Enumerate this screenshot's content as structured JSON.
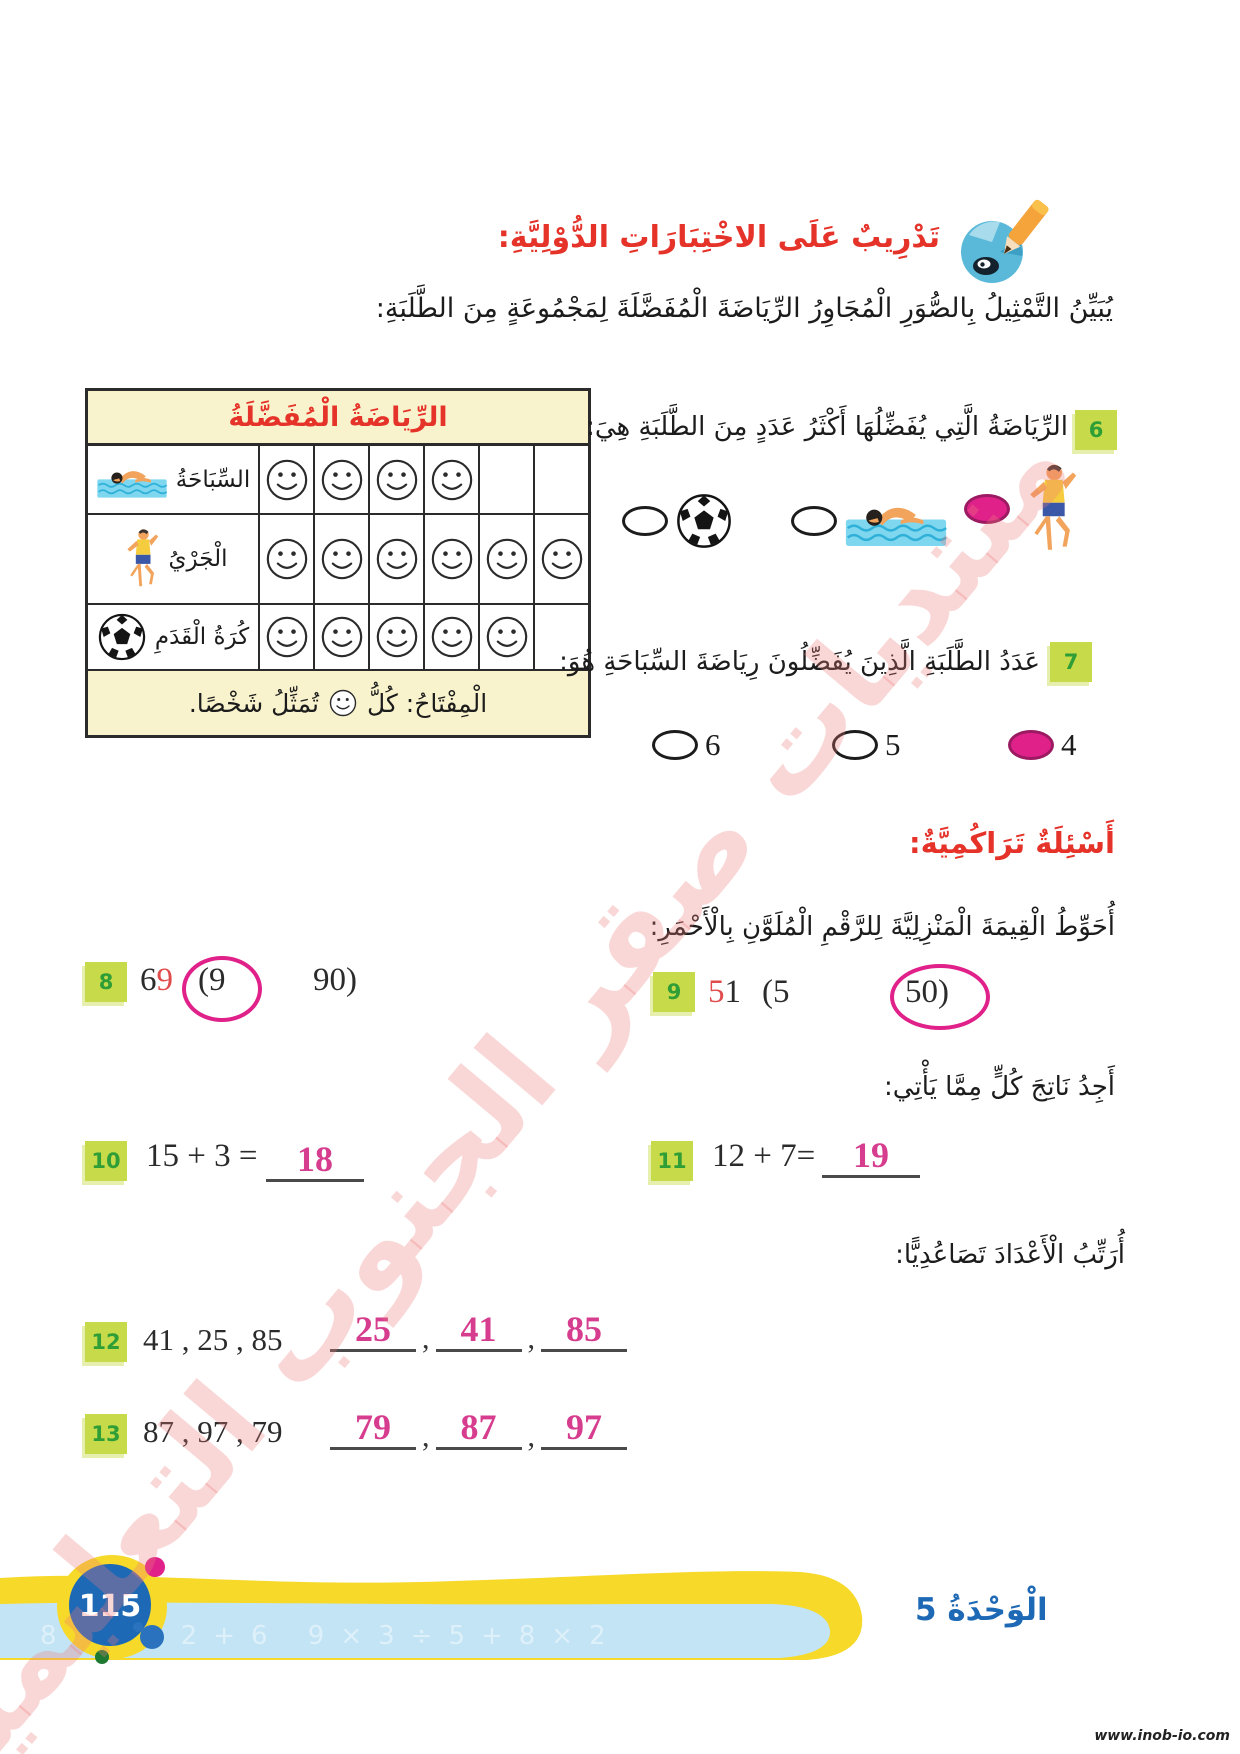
{
  "page": {
    "number": "115",
    "unit_label": "الْوَحْدَةُ 5",
    "url": "www.inob-io.com",
    "watermark": "منتديات صقر الجنوب التعليمية"
  },
  "colors": {
    "heading_red": "#e5332a",
    "badge_green_bg": "#c7db4a",
    "badge_green_text": "#2f9e37",
    "answer_pink": "#d63d8e",
    "selected_magenta": "#e0218a",
    "red_digit": "#e04b4b",
    "table_header_bg": "#f9f3cd",
    "footer_yellow": "#f6d929",
    "footer_blue": "#c3e4f5",
    "footer_bubble_blue": "#1d69b5"
  },
  "header": {
    "title": "تَدْرِيبٌ عَلَى الاخْتِبَارَاتِ الدُّوْلِيَّةِ:",
    "icon": "globe-pencil-icon",
    "intro": "يُبَيِّنُ التَّمْثِيلُ بِالصُّوَرِ الْمُجَاوِرُ الرِّيَاضَةَ الْمُفَضَّلَةَ لِمَجْمُوعَةٍ مِنَ الطَّلَبَةِ:"
  },
  "chart_data": {
    "type": "pictograph",
    "title": "الرِّيَاضَةُ الْمُفَضَّلَةُ",
    "symbol": "smiley-face",
    "symbol_value": 1,
    "max_symbols_per_row": 6,
    "key_prefix": "الْمِفْتَاحُ: كُلُّ",
    "key_suffix": "تُمَثِّلُ شَخْصًا.",
    "rows": [
      {
        "label": "السِّبَاحَةُ",
        "icon": "swimmer-icon",
        "value": 4
      },
      {
        "label": "الْجَرْيُ",
        "icon": "runner-icon",
        "value": 6
      },
      {
        "label": "كُرَةُ الْقَدَمِ",
        "icon": "soccer-ball-icon",
        "value": 5
      }
    ]
  },
  "questions": {
    "q6": {
      "number": "6",
      "text": "الرِّيَاضَةُ الَّتِي يُفَضِّلُهَا أَكْثَرُ عَدَدٍ مِنَ الطَّلَبَةِ هِيَ:",
      "options": [
        {
          "icon": "soccer-ball-icon",
          "selected": false
        },
        {
          "icon": "swimmer-icon",
          "selected": false
        },
        {
          "icon": "runner-icon",
          "selected": true
        }
      ]
    },
    "q7": {
      "number": "7",
      "text": "عَدَدُ الطَّلَبَةِ الَّذِينَ يُفَضِّلُونَ رِيَاضَةَ السِّبَاحَةِ هُوَ:",
      "options": [
        {
          "label": "6",
          "selected": false
        },
        {
          "label": "5",
          "selected": false
        },
        {
          "label": "4",
          "selected": true
        }
      ]
    },
    "cumulative_heading": "أَسْئِلَةٌ تَرَاكُمِيَّةٌ:",
    "circle_instruction": "أُحَوِّطُ الْقِيمَةَ الْمَنْزِلِيَّةَ لِلرَّقْمِ الْمُلَوَّنِ بِالْأَحْمَرِ:",
    "q8": {
      "number": "8",
      "digit_black": "6",
      "digit_red": "9",
      "option_near": "(9",
      "option_far": "90)",
      "circled": "near"
    },
    "q9": {
      "number": "9",
      "digit_red": "5",
      "digit_black": "1",
      "option_near": "(5",
      "option_far": "50)",
      "circled": "far"
    },
    "find_heading": "أَجِدُ نَاتِجَ كُلٍّ مِمَّا يَأْتِي:",
    "q10": {
      "number": "10",
      "expression": "15 + 3 =",
      "answer": "18"
    },
    "q11": {
      "number": "11",
      "expression": "12 + 7=",
      "answer": "19"
    },
    "order_heading": "أُرَتِّبُ الْأَعْدَادَ تَصَاعُدِيًّا:",
    "blank_separator": ",",
    "q12": {
      "number": "12",
      "given": "41 , 25 , 85",
      "answers": [
        "25",
        "41",
        "85"
      ]
    },
    "q13": {
      "number": "13",
      "given": "87 , 97 , 79",
      "answers": [
        "79",
        "87",
        "97"
      ]
    }
  }
}
